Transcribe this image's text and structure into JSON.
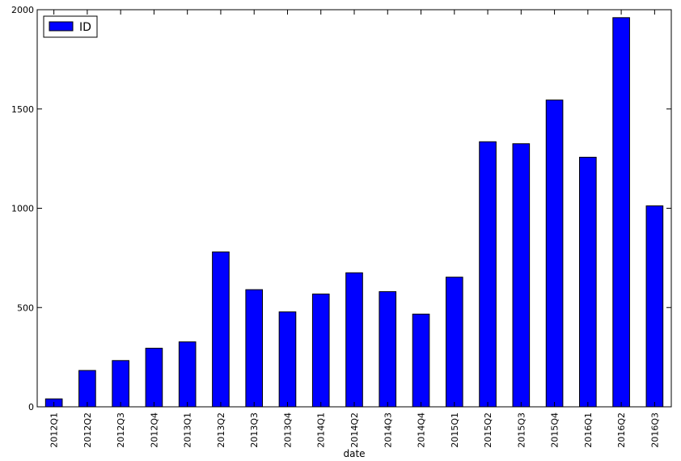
{
  "chart_data": {
    "type": "bar",
    "categories": [
      "2012Q1",
      "2012Q2",
      "2012Q3",
      "2012Q4",
      "2013Q1",
      "2013Q2",
      "2013Q3",
      "2013Q4",
      "2014Q1",
      "2014Q2",
      "2014Q3",
      "2014Q4",
      "2015Q1",
      "2015Q2",
      "2015Q3",
      "2015Q4",
      "2016Q1",
      "2016Q2",
      "2016Q3"
    ],
    "series": [
      {
        "name": "ID",
        "values": [
          40,
          183,
          233,
          295,
          327,
          780,
          590,
          478,
          568,
          675,
          580,
          467,
          653,
          1335,
          1325,
          1545,
          1257,
          1960,
          1012
        ],
        "color": "#0000ff"
      }
    ],
    "title": "",
    "xlabel": "date",
    "ylabel": "",
    "ylim": [
      0,
      2000
    ],
    "yticks": [
      "0",
      "500",
      "1000",
      "1500",
      "2000"
    ],
    "grid": false,
    "legend_position": "top-left"
  }
}
